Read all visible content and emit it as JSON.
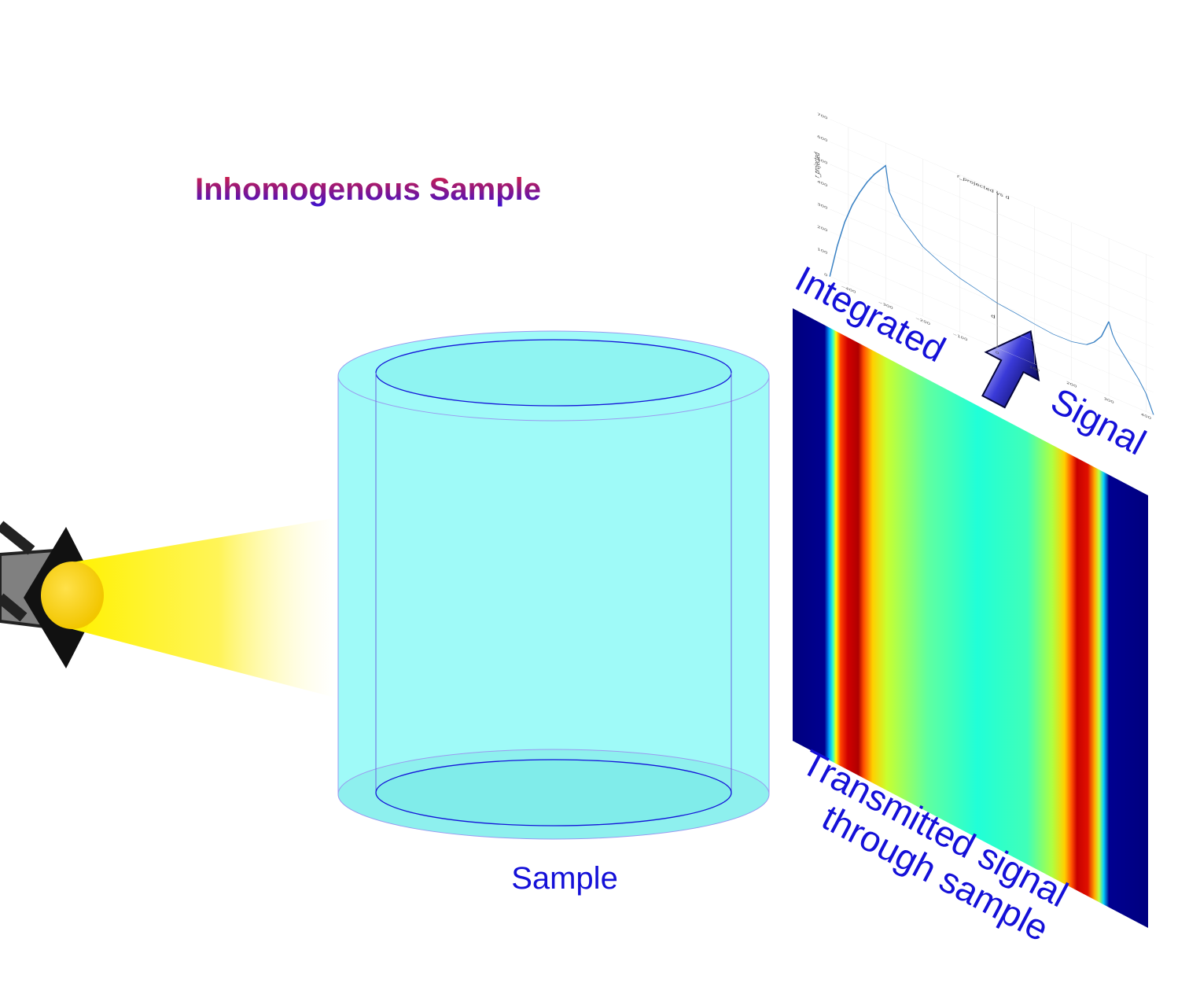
{
  "title": "Inhomogenous Sample",
  "sample_label": "Sample",
  "detector_label_line1": "Transmitted signal",
  "detector_label_line2": "through sample",
  "integrated_word": "Integrated",
  "signal_word": "Signal",
  "colors": {
    "title_gradient_start": "#e0203a",
    "title_gradient_end": "#3a10d0",
    "label_blue": "#1410d8",
    "sample_fill": "#9ffaf8",
    "detector_edge": "#03037d"
  },
  "chart_data": {
    "type": "line",
    "title": "r_projected vs d",
    "xlabel": "d",
    "ylabel": "r_projected",
    "xlim": [
      -450,
      420
    ],
    "ylim": [
      0,
      700
    ],
    "x_ticks": [
      -400,
      -300,
      -200,
      -100,
      0,
      100,
      200,
      300,
      400
    ],
    "y_ticks": [
      0,
      100,
      200,
      300,
      400,
      500,
      600,
      700
    ],
    "grid": true,
    "series": [
      {
        "x": [
          -450,
          -430,
          -410,
          -390,
          -370,
          -350,
          -330,
          -300,
          -290,
          -260,
          -200,
          -150,
          -100,
          -50,
          0,
          50,
          100,
          150,
          200,
          240,
          260,
          280,
          300,
          310,
          320,
          340,
          360,
          380,
          400,
          410,
          420
        ],
        "y": [
          0,
          150,
          270,
          360,
          430,
          490,
          540,
          600,
          490,
          400,
          310,
          270,
          240,
          220,
          200,
          190,
          178,
          168,
          170,
          185,
          210,
          250,
          330,
          280,
          250,
          210,
          170,
          130,
          80,
          40,
          0
        ]
      }
    ]
  }
}
